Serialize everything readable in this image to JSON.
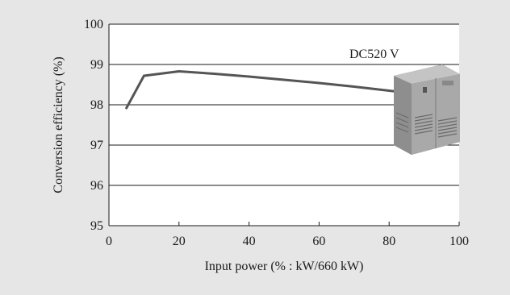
{
  "chart_data": {
    "type": "line",
    "title": "",
    "annotation": "DC520 V",
    "xlabel": "Input power (% : kW/660 kW)",
    "ylabel": "Conversion efficiency (%)",
    "xlim": [
      0,
      100
    ],
    "ylim": [
      95,
      100
    ],
    "xticks": [
      "0",
      "20",
      "40",
      "60",
      "80",
      "100"
    ],
    "yticks": [
      "95",
      "96",
      "97",
      "98",
      "99",
      "100"
    ],
    "grid": "horizontal",
    "series": [
      {
        "name": "",
        "color": "#555555",
        "x": [
          5,
          10,
          20,
          30,
          40,
          50,
          60,
          70,
          80,
          83
        ],
        "y": [
          97.92,
          98.72,
          98.83,
          98.77,
          98.7,
          98.62,
          98.54,
          98.45,
          98.35,
          98.32
        ]
      }
    ],
    "image": "power conditioner cabinet photo"
  }
}
